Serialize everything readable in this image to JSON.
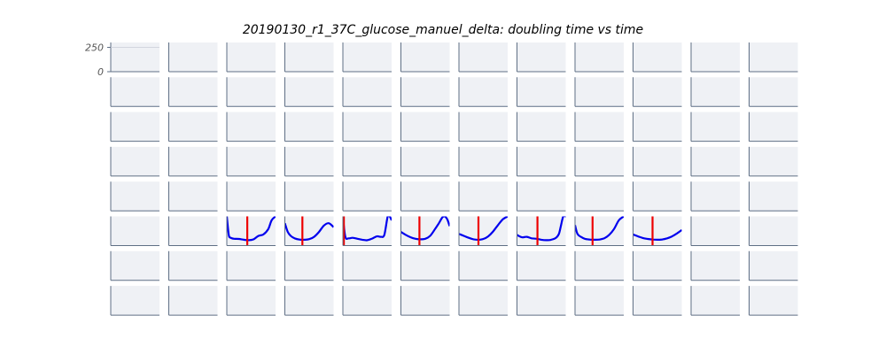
{
  "chart_data": {
    "type": "line",
    "title": "20190130_r1_37C_glucose_manuel_delta: doubling time vs time",
    "rows": 8,
    "cols": 12,
    "y_ticks": [
      "250",
      "0"
    ],
    "ylim": [
      0,
      300
    ],
    "xlim": [
      0,
      1
    ],
    "grid": false,
    "panel_background": "#eff1f5",
    "axis_color": "#5f6f85",
    "line_color": "#0000ee",
    "marker_color": "#ee0000",
    "panels": [
      {
        "row": 5,
        "col": 2,
        "marker_x": 0.42,
        "x": [
          0,
          0.04,
          0.08,
          0.15,
          0.25,
          0.35,
          0.45,
          0.55,
          0.65,
          0.75,
          0.85,
          0.92,
          1.0
        ],
        "y": [
          300,
          110,
          80,
          70,
          68,
          60,
          55,
          65,
          100,
          115,
          170,
          260,
          300
        ]
      },
      {
        "row": 5,
        "col": 3,
        "marker_x": 0.36,
        "x": [
          0,
          0.06,
          0.12,
          0.2,
          0.3,
          0.4,
          0.5,
          0.6,
          0.7,
          0.8,
          0.9,
          1.0
        ],
        "y": [
          230,
          140,
          100,
          75,
          62,
          60,
          66,
          90,
          140,
          205,
          230,
          190
        ]
      },
      {
        "row": 5,
        "col": 4,
        "marker_x": 0.02,
        "x": [
          0,
          0.05,
          0.12,
          0.2,
          0.3,
          0.4,
          0.5,
          0.6,
          0.7,
          0.78,
          0.85,
          0.92,
          0.96,
          1.0
        ],
        "y": [
          300,
          90,
          75,
          80,
          70,
          60,
          55,
          72,
          95,
          90,
          110,
          300,
          300,
          260
        ]
      },
      {
        "row": 5,
        "col": 5,
        "marker_x": 0.38,
        "x": [
          0,
          0.1,
          0.2,
          0.3,
          0.4,
          0.5,
          0.6,
          0.7,
          0.78,
          0.85,
          0.9,
          0.95,
          1.0
        ],
        "y": [
          140,
          110,
          85,
          70,
          65,
          70,
          100,
          170,
          230,
          290,
          300,
          270,
          200
        ]
      },
      {
        "row": 5,
        "col": 6,
        "marker_x": 0.4,
        "x": [
          0,
          0.1,
          0.2,
          0.3,
          0.4,
          0.5,
          0.6,
          0.7,
          0.8,
          0.9,
          1.0
        ],
        "y": [
          120,
          100,
          80,
          65,
          60,
          68,
          95,
          145,
          210,
          270,
          300
        ]
      },
      {
        "row": 5,
        "col": 7,
        "marker_x": 0.42,
        "x": [
          0,
          0.1,
          0.2,
          0.3,
          0.4,
          0.5,
          0.6,
          0.7,
          0.8,
          0.86,
          0.9,
          0.95,
          1.0
        ],
        "y": [
          110,
          85,
          90,
          75,
          70,
          60,
          55,
          60,
          80,
          120,
          200,
          300,
          300
        ]
      },
      {
        "row": 5,
        "col": 8,
        "marker_x": 0.36,
        "x": [
          0,
          0.05,
          0.12,
          0.2,
          0.3,
          0.4,
          0.5,
          0.6,
          0.7,
          0.8,
          0.9,
          1.0
        ],
        "y": [
          210,
          120,
          90,
          70,
          62,
          60,
          62,
          75,
          110,
          170,
          260,
          300
        ]
      },
      {
        "row": 5,
        "col": 9,
        "marker_x": 0.4,
        "x": [
          0,
          0.1,
          0.2,
          0.3,
          0.4,
          0.5,
          0.6,
          0.7,
          0.8,
          0.9,
          1.0
        ],
        "y": [
          115,
          95,
          78,
          68,
          62,
          60,
          63,
          75,
          95,
          125,
          160
        ]
      }
    ]
  }
}
